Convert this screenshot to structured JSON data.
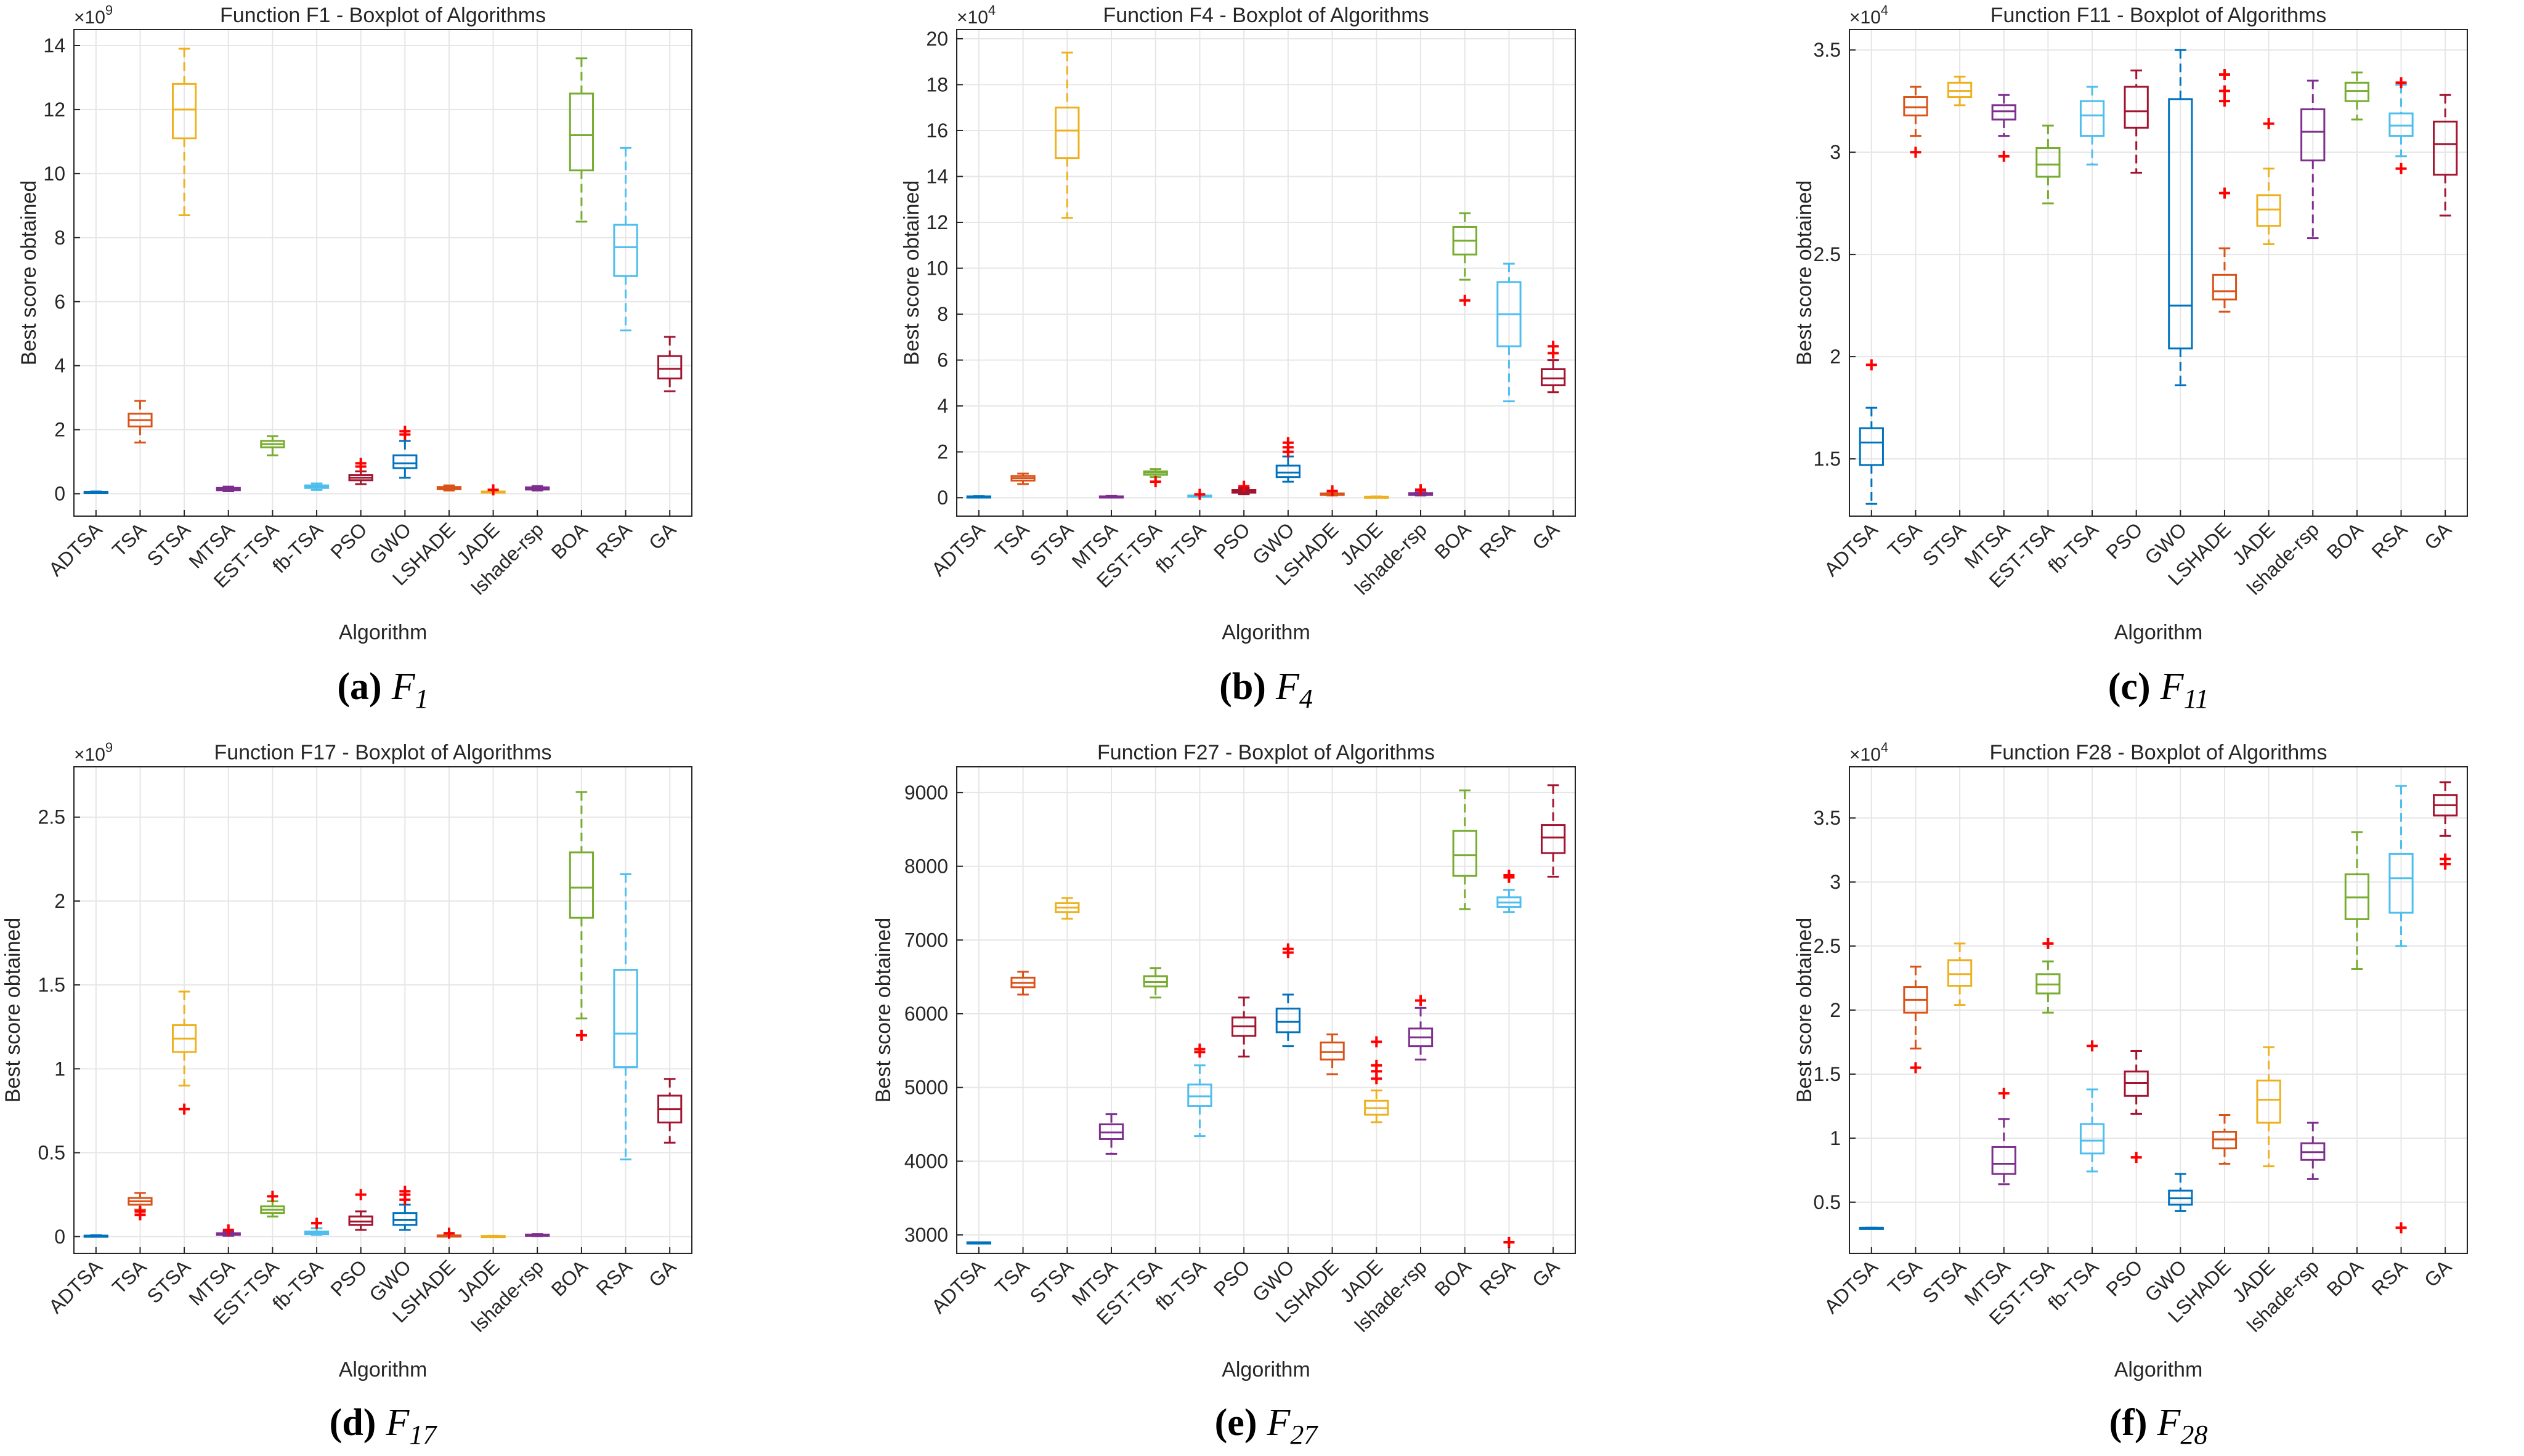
{
  "figure": {
    "algorithms": [
      "ADTSA",
      "TSA",
      "STSA",
      "MTSA",
      "EST-TSA",
      "fb-TSA",
      "PSO",
      "GWO",
      "LSHADE",
      "JADE",
      "lshade-rsp",
      "BOA",
      "RSA",
      "GA"
    ],
    "colors": [
      "#0072BD",
      "#D95319",
      "#EDB120",
      "#7E2F8E",
      "#77AC30",
      "#4DBEEE",
      "#A2142F",
      "#0072BD",
      "#D95319",
      "#EDB120",
      "#7E2F8E",
      "#77AC30",
      "#4DBEEE",
      "#A2142F"
    ],
    "outlier_color": "#FF0000",
    "grid_color": "#E6E6E6"
  },
  "chart_data": [
    {
      "type": "boxplot",
      "title": "Function F1 - Boxplot of Algorithms",
      "xlabel": "Algorithm",
      "ylabel": "Best score obtained",
      "exponent_base": "×10",
      "exponent_power": "9",
      "ylim": [
        -0.7,
        14.5
      ],
      "yticks": [
        0,
        2,
        4,
        6,
        8,
        10,
        12,
        14
      ],
      "yticklabels": [
        "0",
        "2",
        "4",
        "6",
        "8",
        "10",
        "12",
        "14"
      ],
      "boxes": [
        {
          "wlo": 0.03,
          "q1": 0.04,
          "med": 0.05,
          "q3": 0.06,
          "whi": 0.07,
          "out": []
        },
        {
          "wlo": 1.6,
          "q1": 2.1,
          "med": 2.3,
          "q3": 2.5,
          "whi": 2.9,
          "out": []
        },
        {
          "wlo": 8.7,
          "q1": 11.1,
          "med": 12.0,
          "q3": 12.8,
          "whi": 13.9,
          "out": []
        },
        {
          "wlo": 0.08,
          "q1": 0.11,
          "med": 0.15,
          "q3": 0.18,
          "whi": 0.22,
          "out": []
        },
        {
          "wlo": 1.2,
          "q1": 1.45,
          "med": 1.55,
          "q3": 1.65,
          "whi": 1.8,
          "out": []
        },
        {
          "wlo": 0.12,
          "q1": 0.18,
          "med": 0.22,
          "q3": 0.26,
          "whi": 0.32,
          "out": []
        },
        {
          "wlo": 0.3,
          "q1": 0.42,
          "med": 0.5,
          "q3": 0.58,
          "whi": 0.7,
          "out": [
            0.85,
            0.95
          ]
        },
        {
          "wlo": 0.5,
          "q1": 0.8,
          "med": 0.95,
          "q3": 1.2,
          "whi": 1.65,
          "out": [
            1.85,
            1.95
          ]
        },
        {
          "wlo": 0.1,
          "q1": 0.14,
          "med": 0.18,
          "q3": 0.21,
          "whi": 0.26,
          "out": []
        },
        {
          "wlo": 0.04,
          "q1": 0.05,
          "med": 0.06,
          "q3": 0.07,
          "whi": 0.08,
          "out": [
            0.12
          ]
        },
        {
          "wlo": 0.1,
          "q1": 0.13,
          "med": 0.16,
          "q3": 0.2,
          "whi": 0.24,
          "out": []
        },
        {
          "wlo": 8.5,
          "q1": 10.1,
          "med": 11.2,
          "q3": 12.5,
          "whi": 13.6,
          "out": []
        },
        {
          "wlo": 5.1,
          "q1": 6.8,
          "med": 7.7,
          "q3": 8.4,
          "whi": 10.8,
          "out": []
        },
        {
          "wlo": 3.2,
          "q1": 3.6,
          "med": 3.9,
          "q3": 4.3,
          "whi": 4.9,
          "out": []
        }
      ]
    },
    {
      "type": "boxplot",
      "title": "Function F4 - Boxplot of Algorithms",
      "xlabel": "Algorithm",
      "ylabel": "Best score obtained",
      "exponent_base": "×10",
      "exponent_power": "4",
      "ylim": [
        -0.8,
        20.4
      ],
      "yticks": [
        0,
        2,
        4,
        6,
        8,
        10,
        12,
        14,
        16,
        18,
        20
      ],
      "yticklabels": [
        "0",
        "2",
        "4",
        "6",
        "8",
        "10",
        "12",
        "14",
        "16",
        "18",
        "20"
      ],
      "boxes": [
        {
          "wlo": 0.03,
          "q1": 0.04,
          "med": 0.05,
          "q3": 0.06,
          "whi": 0.07,
          "out": []
        },
        {
          "wlo": 0.6,
          "q1": 0.75,
          "med": 0.85,
          "q3": 0.95,
          "whi": 1.05,
          "out": []
        },
        {
          "wlo": 12.2,
          "q1": 14.8,
          "med": 16.0,
          "q3": 17.0,
          "whi": 19.4,
          "out": []
        },
        {
          "wlo": 0.03,
          "q1": 0.04,
          "med": 0.05,
          "q3": 0.06,
          "whi": 0.08,
          "out": []
        },
        {
          "wlo": 0.9,
          "q1": 1.0,
          "med": 1.1,
          "q3": 1.15,
          "whi": 1.25,
          "out": [
            0.7
          ]
        },
        {
          "wlo": 0.05,
          "q1": 0.07,
          "med": 0.08,
          "q3": 0.1,
          "whi": 0.12,
          "out": [
            0.15
          ]
        },
        {
          "wlo": 0.15,
          "q1": 0.22,
          "med": 0.28,
          "q3": 0.34,
          "whi": 0.42,
          "out": [
            0.5
          ]
        },
        {
          "wlo": 0.7,
          "q1": 0.9,
          "med": 1.1,
          "q3": 1.4,
          "whi": 1.8,
          "out": [
            2.0,
            2.2,
            2.4
          ]
        },
        {
          "wlo": 0.1,
          "q1": 0.13,
          "med": 0.16,
          "q3": 0.19,
          "whi": 0.22,
          "out": [
            0.3
          ]
        },
        {
          "wlo": 0.02,
          "q1": 0.03,
          "med": 0.04,
          "q3": 0.05,
          "whi": 0.06,
          "out": []
        },
        {
          "wlo": 0.1,
          "q1": 0.13,
          "med": 0.17,
          "q3": 0.2,
          "whi": 0.25,
          "out": [
            0.35
          ]
        },
        {
          "wlo": 9.5,
          "q1": 10.6,
          "med": 11.2,
          "q3": 11.8,
          "whi": 12.4,
          "out": [
            8.6
          ]
        },
        {
          "wlo": 4.2,
          "q1": 6.6,
          "med": 8.0,
          "q3": 9.4,
          "whi": 10.2,
          "out": []
        },
        {
          "wlo": 4.6,
          "q1": 4.9,
          "med": 5.2,
          "q3": 5.6,
          "whi": 6.0,
          "out": [
            6.3,
            6.6
          ]
        }
      ]
    },
    {
      "type": "boxplot",
      "title": "Function F11 - Boxplot of Algorithms",
      "xlabel": "Algorithm",
      "ylabel": "Best score obtained",
      "exponent_base": "×10",
      "exponent_power": "4",
      "ylim": [
        1.22,
        3.6
      ],
      "yticks": [
        1.5,
        2,
        2.5,
        3,
        3.5
      ],
      "yticklabels": [
        "1.5",
        "2",
        "2.5",
        "3",
        "3.5"
      ],
      "boxes": [
        {
          "wlo": 1.28,
          "q1": 1.47,
          "med": 1.58,
          "q3": 1.65,
          "whi": 1.75,
          "out": [
            1.96
          ]
        },
        {
          "wlo": 3.08,
          "q1": 3.18,
          "med": 3.22,
          "q3": 3.27,
          "whi": 3.32,
          "out": [
            3.0
          ]
        },
        {
          "wlo": 3.23,
          "q1": 3.27,
          "med": 3.3,
          "q3": 3.34,
          "whi": 3.37,
          "out": []
        },
        {
          "wlo": 3.08,
          "q1": 3.16,
          "med": 3.2,
          "q3": 3.23,
          "whi": 3.28,
          "out": [
            2.98
          ]
        },
        {
          "wlo": 2.75,
          "q1": 2.88,
          "med": 2.94,
          "q3": 3.02,
          "whi": 3.13,
          "out": []
        },
        {
          "wlo": 2.94,
          "q1": 3.08,
          "med": 3.18,
          "q3": 3.25,
          "whi": 3.32,
          "out": []
        },
        {
          "wlo": 2.9,
          "q1": 3.12,
          "med": 3.2,
          "q3": 3.32,
          "whi": 3.4,
          "out": []
        },
        {
          "wlo": 1.86,
          "q1": 2.04,
          "med": 2.25,
          "q3": 3.26,
          "whi": 3.5,
          "out": []
        },
        {
          "wlo": 2.22,
          "q1": 2.28,
          "med": 2.32,
          "q3": 2.4,
          "whi": 2.53,
          "out": [
            2.8,
            3.25,
            3.3,
            3.38
          ]
        },
        {
          "wlo": 2.55,
          "q1": 2.64,
          "med": 2.72,
          "q3": 2.79,
          "whi": 2.92,
          "out": [
            3.14
          ]
        },
        {
          "wlo": 2.58,
          "q1": 2.96,
          "med": 3.1,
          "q3": 3.21,
          "whi": 3.35,
          "out": []
        },
        {
          "wlo": 3.16,
          "q1": 3.25,
          "med": 3.3,
          "q3": 3.34,
          "whi": 3.39,
          "out": []
        },
        {
          "wlo": 2.98,
          "q1": 3.08,
          "med": 3.13,
          "q3": 3.19,
          "whi": 3.33,
          "out": [
            2.92,
            3.34
          ]
        },
        {
          "wlo": 2.69,
          "q1": 2.89,
          "med": 3.04,
          "q3": 3.15,
          "whi": 3.28,
          "out": []
        }
      ]
    },
    {
      "type": "boxplot",
      "title": "Function F17 - Boxplot of Algorithms",
      "xlabel": "Algorithm",
      "ylabel": "Best score obtained",
      "exponent_base": "×10",
      "exponent_power": "9",
      "ylim": [
        -0.1,
        2.8
      ],
      "yticks": [
        0,
        0.5,
        1,
        1.5,
        2,
        2.5
      ],
      "yticklabels": [
        "0",
        "0.5",
        "1",
        "1.5",
        "2",
        "2.5"
      ],
      "boxes": [
        {
          "wlo": 0.002,
          "q1": 0.004,
          "med": 0.005,
          "q3": 0.006,
          "whi": 0.008,
          "out": []
        },
        {
          "wlo": 0.16,
          "q1": 0.19,
          "med": 0.21,
          "q3": 0.23,
          "whi": 0.26,
          "out": [
            0.13,
            0.15
          ]
        },
        {
          "wlo": 0.9,
          "q1": 1.1,
          "med": 1.18,
          "q3": 1.26,
          "whi": 1.46,
          "out": [
            0.76
          ]
        },
        {
          "wlo": 0.005,
          "q1": 0.01,
          "med": 0.015,
          "q3": 0.02,
          "whi": 0.03,
          "out": [
            0.04
          ]
        },
        {
          "wlo": 0.12,
          "q1": 0.14,
          "med": 0.16,
          "q3": 0.18,
          "whi": 0.21,
          "out": [
            0.24
          ]
        },
        {
          "wlo": 0.01,
          "q1": 0.015,
          "med": 0.02,
          "q3": 0.03,
          "whi": 0.05,
          "out": [
            0.08
          ]
        },
        {
          "wlo": 0.04,
          "q1": 0.07,
          "med": 0.09,
          "q3": 0.12,
          "whi": 0.15,
          "out": [
            0.25
          ]
        },
        {
          "wlo": 0.04,
          "q1": 0.07,
          "med": 0.1,
          "q3": 0.14,
          "whi": 0.19,
          "out": [
            0.22,
            0.25,
            0.27
          ]
        },
        {
          "wlo": 0.001,
          "q1": 0.003,
          "med": 0.005,
          "q3": 0.007,
          "whi": 0.01,
          "out": [
            0.02
          ]
        },
        {
          "wlo": 0.001,
          "q1": 0.002,
          "med": 0.003,
          "q3": 0.004,
          "whi": 0.005,
          "out": []
        },
        {
          "wlo": 0.003,
          "q1": 0.006,
          "med": 0.009,
          "q3": 0.012,
          "whi": 0.015,
          "out": []
        },
        {
          "wlo": 1.3,
          "q1": 1.9,
          "med": 2.08,
          "q3": 2.29,
          "whi": 2.65,
          "out": [
            1.2
          ]
        },
        {
          "wlo": 0.46,
          "q1": 1.01,
          "med": 1.21,
          "q3": 1.59,
          "whi": 2.16,
          "out": []
        },
        {
          "wlo": 0.56,
          "q1": 0.68,
          "med": 0.76,
          "q3": 0.84,
          "whi": 0.94,
          "out": []
        }
      ]
    },
    {
      "type": "boxplot",
      "title": "Function F27 - Boxplot of Algorithms",
      "xlabel": "Algorithm",
      "ylabel": "Best score obtained",
      "exponent_base": "",
      "exponent_power": "",
      "ylim": [
        2750,
        9350
      ],
      "yticks": [
        3000,
        4000,
        5000,
        6000,
        7000,
        8000,
        9000
      ],
      "yticklabels": [
        "3000",
        "4000",
        "5000",
        "6000",
        "7000",
        "8000",
        "9000"
      ],
      "boxes": [
        {
          "wlo": 2900,
          "q1": 2900,
          "med": 2900,
          "q3": 2900,
          "whi": 2900,
          "out": []
        },
        {
          "wlo": 6260,
          "q1": 6360,
          "med": 6420,
          "q3": 6490,
          "whi": 6570,
          "out": []
        },
        {
          "wlo": 7290,
          "q1": 7380,
          "med": 7440,
          "q3": 7500,
          "whi": 7570,
          "out": []
        },
        {
          "wlo": 4100,
          "q1": 4300,
          "med": 4390,
          "q3": 4500,
          "whi": 4640,
          "out": []
        },
        {
          "wlo": 6220,
          "q1": 6370,
          "med": 6430,
          "q3": 6510,
          "whi": 6620,
          "out": []
        },
        {
          "wlo": 4340,
          "q1": 4750,
          "med": 4880,
          "q3": 5040,
          "whi": 5300,
          "out": [
            5480,
            5520
          ]
        },
        {
          "wlo": 5420,
          "q1": 5700,
          "med": 5830,
          "q3": 5950,
          "whi": 6220,
          "out": []
        },
        {
          "wlo": 5560,
          "q1": 5750,
          "med": 5890,
          "q3": 6070,
          "whi": 6260,
          "out": [
            6830,
            6880
          ]
        },
        {
          "wlo": 5180,
          "q1": 5380,
          "med": 5480,
          "q3": 5610,
          "whi": 5720,
          "out": []
        },
        {
          "wlo": 4530,
          "q1": 4630,
          "med": 4720,
          "q3": 4820,
          "whi": 4960,
          "out": [
            5120,
            5220,
            5300,
            5620
          ]
        },
        {
          "wlo": 5380,
          "q1": 5560,
          "med": 5680,
          "q3": 5800,
          "whi": 6080,
          "out": [
            6180
          ]
        },
        {
          "wlo": 7420,
          "q1": 7870,
          "med": 8150,
          "q3": 8480,
          "whi": 9030,
          "out": []
        },
        {
          "wlo": 7380,
          "q1": 7450,
          "med": 7510,
          "q3": 7580,
          "whi": 7680,
          "out": [
            2900,
            7850,
            7880
          ]
        },
        {
          "wlo": 7860,
          "q1": 8180,
          "med": 8390,
          "q3": 8560,
          "whi": 9100,
          "out": []
        }
      ]
    },
    {
      "type": "boxplot",
      "title": "Function F28 - Boxplot of Algorithms",
      "xlabel": "Algorithm",
      "ylabel": "Best score obtained",
      "exponent_base": "×10",
      "exponent_power": "4",
      "ylim": [
        0.1,
        3.9
      ],
      "yticks": [
        0.5,
        1,
        1.5,
        2,
        2.5,
        3,
        3.5
      ],
      "yticklabels": [
        "0.5",
        "1",
        "1.5",
        "2",
        "2.5",
        "3",
        "3.5"
      ],
      "boxes": [
        {
          "wlo": 0.3,
          "q1": 0.3,
          "med": 0.3,
          "q3": 0.3,
          "whi": 0.3,
          "out": []
        },
        {
          "wlo": 1.7,
          "q1": 1.98,
          "med": 2.08,
          "q3": 2.18,
          "whi": 2.34,
          "out": [
            1.55
          ]
        },
        {
          "wlo": 2.04,
          "q1": 2.19,
          "med": 2.28,
          "q3": 2.39,
          "whi": 2.52,
          "out": []
        },
        {
          "wlo": 0.64,
          "q1": 0.72,
          "med": 0.8,
          "q3": 0.93,
          "whi": 1.15,
          "out": [
            1.35
          ]
        },
        {
          "wlo": 1.98,
          "q1": 2.13,
          "med": 2.2,
          "q3": 2.28,
          "whi": 2.38,
          "out": [
            2.52
          ]
        },
        {
          "wlo": 0.74,
          "q1": 0.88,
          "med": 0.98,
          "q3": 1.11,
          "whi": 1.38,
          "out": [
            1.72
          ]
        },
        {
          "wlo": 1.19,
          "q1": 1.33,
          "med": 1.43,
          "q3": 1.52,
          "whi": 1.68,
          "out": [
            0.85
          ]
        },
        {
          "wlo": 0.43,
          "q1": 0.48,
          "med": 0.53,
          "q3": 0.59,
          "whi": 0.72,
          "out": []
        },
        {
          "wlo": 0.8,
          "q1": 0.92,
          "med": 0.99,
          "q3": 1.05,
          "whi": 1.18,
          "out": []
        },
        {
          "wlo": 0.78,
          "q1": 1.12,
          "med": 1.3,
          "q3": 1.45,
          "whi": 1.71,
          "out": []
        },
        {
          "wlo": 0.68,
          "q1": 0.83,
          "med": 0.89,
          "q3": 0.96,
          "whi": 1.12,
          "out": []
        },
        {
          "wlo": 2.32,
          "q1": 2.71,
          "med": 2.88,
          "q3": 3.06,
          "whi": 3.39,
          "out": []
        },
        {
          "wlo": 2.5,
          "q1": 2.76,
          "med": 3.03,
          "q3": 3.22,
          "whi": 3.75,
          "out": [
            0.3
          ]
        },
        {
          "wlo": 3.36,
          "q1": 3.52,
          "med": 3.6,
          "q3": 3.68,
          "whi": 3.78,
          "out": [
            3.14,
            3.18
          ]
        }
      ]
    }
  ],
  "captions": [
    {
      "letter": "(a)",
      "symbol": "F",
      "sub": "1"
    },
    {
      "letter": "(b)",
      "symbol": "F",
      "sub": "4"
    },
    {
      "letter": "(c)",
      "symbol": "F",
      "sub": "11"
    },
    {
      "letter": "(d)",
      "symbol": "F",
      "sub": "17"
    },
    {
      "letter": "(e)",
      "symbol": "F",
      "sub": "27"
    },
    {
      "letter": "(f)",
      "symbol": "F",
      "sub": "28"
    }
  ]
}
